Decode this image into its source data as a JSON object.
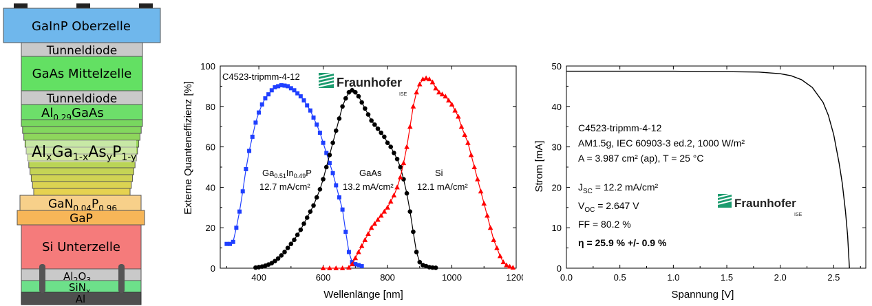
{
  "stack": {
    "layers": [
      {
        "id": "top",
        "label": "GaInP Oberzelle",
        "color": "#6fb7ec"
      },
      {
        "id": "tunnel1",
        "label": "Tunneldiode",
        "color": "#c9c9c9"
      },
      {
        "id": "mid",
        "label": "GaAs Mittelzelle",
        "color": "#63e063"
      },
      {
        "id": "tunnel2",
        "label": "Tunneldiode",
        "color": "#c9c9c9"
      },
      {
        "id": "algaas",
        "label": "Al0.29GaAs",
        "color": "#6ddf6a"
      },
      {
        "id": "graded",
        "label": "AlxGa1-xAsyP1-y",
        "color": "#a7d657"
      },
      {
        "id": "ganp",
        "label": "GaN0.04P0.96",
        "color": "#f7d08a"
      },
      {
        "id": "gap",
        "label": "GaP",
        "color": "#f7b658"
      },
      {
        "id": "bottom",
        "label": "Si Unterzelle",
        "color": "#f57b7b"
      },
      {
        "id": "al2o3",
        "label": "Al2O3",
        "color": "#c9c9c9"
      },
      {
        "id": "sin",
        "label": "SiNx",
        "color": "#6de08a"
      },
      {
        "id": "al",
        "label": "Al",
        "color": "#4f4f4f"
      }
    ],
    "labels": {
      "algaas": {
        "main": "Al",
        "sub": "0.29",
        "rest": "GaAs"
      },
      "graded": {
        "a": "Al",
        "x1": "x",
        "b": "Ga",
        "x2": "1-x",
        "c": "As",
        "y1": "y",
        "d": "P",
        "y2": "1-y"
      },
      "ganp": {
        "a": "GaN",
        "s1": "0.04",
        "b": "P",
        "s2": "0.96"
      },
      "al2o3": {
        "a": "Al",
        "s1": "2",
        "b": "O",
        "s2": "3"
      },
      "sin": {
        "a": "SiN",
        "s1": "x"
      }
    }
  },
  "eqe": {
    "sample_id": "C4523-tripmm-4-12",
    "logo": {
      "name": "Fraunhofer",
      "sub": "ISE"
    },
    "annotations": [
      {
        "label": "Ga0.51In0.49P",
        "parts": [
          "Ga",
          "0.51",
          "In",
          "0.49",
          "P"
        ],
        "value": "12.7 mA/cm²"
      },
      {
        "label": "GaAs",
        "value": "13.2 mA/cm²"
      },
      {
        "label": "Si",
        "value": "12.1 mA/cm²"
      }
    ]
  },
  "iv": {
    "info_lines": [
      "C4523-tripmm-4-12",
      "AM1.5g, IEC 60903-3 ed.2, 1000 W/m²",
      "A = 3.987 cm² (ap), T = 25 °C"
    ],
    "jsc": {
      "sym": "J",
      "sub": "SC",
      "rest": " = 12.2 mA/cm²"
    },
    "voc": {
      "sym": "V",
      "sub": "OC",
      "rest": " = 2.647 V"
    },
    "ff": "FF = 80.2 %",
    "eta": "η = 25.9 % +/- 0.9 %",
    "logo": {
      "name": "Fraunhofer",
      "sub": "ISE"
    }
  },
  "chart_data": [
    {
      "type": "line",
      "xlabel": "Wellenlänge [nm]",
      "ylabel": "Externe Quanteneffizienz [%]",
      "xlim": [
        280,
        1200
      ],
      "ylim": [
        0,
        100
      ],
      "xticks": [
        400,
        600,
        800,
        1000,
        1200
      ],
      "yticks": [
        0,
        20,
        40,
        60,
        80,
        100
      ],
      "series": [
        {
          "color": "#1f3fff",
          "marker": "square",
          "x": [
            300,
            310,
            320,
            330,
            340,
            350,
            360,
            370,
            380,
            390,
            400,
            410,
            420,
            430,
            440,
            450,
            460,
            470,
            480,
            490,
            500,
            510,
            520,
            530,
            540,
            550,
            560,
            570,
            580,
            590,
            600,
            610,
            620,
            630,
            640,
            650,
            660,
            670,
            680,
            690,
            700,
            710,
            720
          ],
          "y": [
            12,
            12,
            13,
            20,
            28,
            38,
            49,
            58,
            65,
            72,
            77,
            81,
            84,
            86,
            88,
            89.5,
            90,
            90.5,
            90.3,
            90,
            89,
            88,
            86.5,
            85,
            83,
            80.5,
            78,
            74.5,
            71,
            67,
            62,
            57,
            52,
            47,
            41,
            35,
            29,
            18,
            8,
            3,
            2,
            1.5,
            1
          ]
        },
        {
          "color": "#000000",
          "marker": "circle",
          "x": [
            390,
            400,
            410,
            420,
            430,
            440,
            450,
            460,
            470,
            480,
            490,
            500,
            510,
            520,
            530,
            540,
            550,
            560,
            570,
            580,
            590,
            600,
            610,
            620,
            630,
            640,
            650,
            660,
            670,
            680,
            690,
            700,
            710,
            720,
            730,
            740,
            750,
            760,
            770,
            780,
            790,
            800,
            810,
            820,
            830,
            840,
            850,
            860,
            870,
            880,
            890,
            900,
            910,
            920,
            930,
            940,
            950
          ],
          "y": [
            0.3,
            0.5,
            0.8,
            1.2,
            1.8,
            2.5,
            3.5,
            4.8,
            6.3,
            8,
            10,
            12,
            14,
            16.5,
            19,
            22,
            25,
            28,
            31,
            35,
            39,
            44,
            50,
            56,
            62,
            68,
            74,
            80,
            84,
            87,
            88,
            87,
            85,
            82,
            79,
            76,
            73,
            71,
            69,
            67,
            65,
            62,
            60,
            57,
            54,
            50,
            44,
            37,
            28,
            18,
            8,
            3,
            1.5,
            1,
            0.5,
            0.3,
            0.2
          ]
        },
        {
          "color": "#ff0000",
          "marker": "triangle",
          "x": [
            600,
            620,
            640,
            660,
            680,
            690,
            700,
            710,
            720,
            730,
            740,
            750,
            760,
            770,
            780,
            790,
            800,
            810,
            820,
            830,
            840,
            850,
            860,
            870,
            880,
            890,
            900,
            910,
            920,
            930,
            940,
            950,
            960,
            970,
            980,
            990,
            1000,
            1010,
            1020,
            1030,
            1040,
            1050,
            1060,
            1070,
            1080,
            1090,
            1100,
            1110,
            1120,
            1130,
            1140,
            1150,
            1160,
            1170,
            1180,
            1190
          ],
          "y": [
            0,
            0,
            0,
            0,
            0.3,
            2,
            5,
            8,
            11,
            14,
            17,
            20,
            22,
            24,
            26,
            28,
            30,
            33,
            36,
            40,
            45,
            52,
            60,
            70,
            80,
            87,
            91,
            93.5,
            94,
            93.5,
            92,
            89,
            87,
            86,
            85,
            83,
            81,
            78,
            75,
            70,
            66,
            62,
            56,
            50,
            44,
            38,
            32,
            26,
            20,
            14,
            10,
            6,
            3,
            1.5,
            0.8,
            0.3
          ]
        }
      ]
    },
    {
      "type": "line",
      "xlabel": "Spannung [V]",
      "ylabel": "Strom [mA]",
      "xlim": [
        0,
        2.8
      ],
      "ylim": [
        0,
        50
      ],
      "xticks": [
        0.0,
        0.5,
        1.0,
        1.5,
        2.0,
        2.5
      ],
      "yticks": [
        0,
        10,
        20,
        30,
        40,
        50
      ],
      "series": [
        {
          "color": "#000000",
          "x": [
            0,
            0.5,
            1.0,
            1.5,
            1.8,
            2.0,
            2.1,
            2.2,
            2.3,
            2.4,
            2.45,
            2.5,
            2.55,
            2.58,
            2.61,
            2.63,
            2.647
          ],
          "y": [
            48.7,
            48.7,
            48.7,
            48.6,
            48.5,
            48.1,
            47.6,
            46.6,
            44.7,
            41.0,
            37.8,
            33.0,
            26.0,
            21.0,
            14.0,
            8.0,
            0
          ]
        }
      ]
    }
  ]
}
